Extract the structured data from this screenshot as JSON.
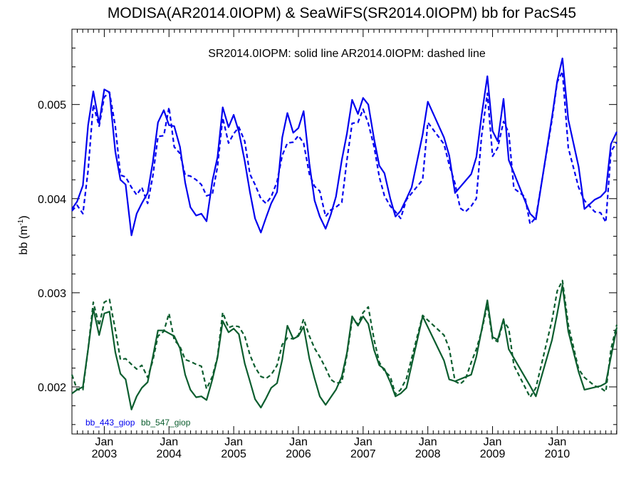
{
  "chart_data": {
    "type": "line",
    "title": "MODISA(AR2014.0IOPM) & SeaWiFS(SR2014.0IOPM)  bb for PacS45",
    "subtitle": "SR2014.0IOPM: solid line   AR2014.0IOPM: dashed line",
    "ylabel": "bb (m",
    "ylabel_sup": "-1",
    "ylabel_close": ")",
    "xlim": [
      2002.5,
      2010.92
    ],
    "ylim": [
      0.0015,
      0.0058
    ],
    "y_ticks": [
      {
        "value": 0.002,
        "label": "0.002"
      },
      {
        "value": 0.003,
        "label": "0.003"
      },
      {
        "value": 0.004,
        "label": "0.004"
      },
      {
        "value": 0.005,
        "label": "0.005"
      }
    ],
    "x_ticks": [
      {
        "value": 2003.0,
        "month": "Jan",
        "year": "2003"
      },
      {
        "value": 2004.0,
        "month": "Jan",
        "year": "2004"
      },
      {
        "value": 2005.0,
        "month": "Jan",
        "year": "2005"
      },
      {
        "value": 2006.0,
        "month": "Jan",
        "year": "2006"
      },
      {
        "value": 2007.0,
        "month": "Jan",
        "year": "2007"
      },
      {
        "value": 2008.0,
        "month": "Jan",
        "year": "2008"
      },
      {
        "value": 2009.0,
        "month": "Jan",
        "year": "2009"
      },
      {
        "value": 2010.0,
        "month": "Jan",
        "year": "2010"
      }
    ],
    "legend": [
      {
        "label": "bb_443_giop",
        "color": "#0000ee"
      },
      {
        "label": "bb_547_giop",
        "color": "#0b5d2e"
      }
    ],
    "series": [
      {
        "name": "bb_443_giop",
        "color": "#0000ee",
        "style": "solid",
        "x": [
          2002.5,
          2002.58,
          2002.67,
          2002.75,
          2002.83,
          2002.92,
          2003.0,
          2003.08,
          2003.17,
          2003.25,
          2003.33,
          2003.42,
          2003.5,
          2003.58,
          2003.67,
          2003.75,
          2003.83,
          2003.92,
          2004.0,
          2004.08,
          2004.17,
          2004.25,
          2004.33,
          2004.42,
          2004.5,
          2004.58,
          2004.67,
          2004.75,
          2004.83,
          2004.92,
          2005.0,
          2005.08,
          2005.17,
          2005.25,
          2005.33,
          2005.42,
          2005.5,
          2005.58,
          2005.67,
          2005.75,
          2005.83,
          2005.92,
          2006.0,
          2006.08,
          2006.17,
          2006.25,
          2006.33,
          2006.42,
          2006.5,
          2006.58,
          2006.67,
          2006.75,
          2006.83,
          2006.92,
          2007.0,
          2007.08,
          2007.17,
          2007.25,
          2007.33,
          2007.42,
          2007.5,
          2007.58,
          2007.67,
          2007.75,
          2007.92,
          2008.0,
          2008.25,
          2008.33,
          2008.42,
          2008.67,
          2008.75,
          2008.83,
          2008.92,
          2009.0,
          2009.08,
          2009.17,
          2009.25,
          2009.58,
          2009.67,
          2009.92,
          2010.0,
          2010.08,
          2010.17,
          2010.33,
          2010.42,
          2010.58,
          2010.67,
          2010.75,
          2010.83,
          2010.92
        ],
        "y": [
          0.00389,
          0.00397,
          0.00414,
          0.00478,
          0.00514,
          0.0048,
          0.00516,
          0.00513,
          0.0045,
          0.0042,
          0.00415,
          0.00361,
          0.00384,
          0.00395,
          0.00406,
          0.00439,
          0.00481,
          0.00494,
          0.00478,
          0.00477,
          0.00455,
          0.00417,
          0.00391,
          0.00382,
          0.00384,
          0.00376,
          0.00419,
          0.00444,
          0.00497,
          0.00476,
          0.00489,
          0.00471,
          0.0044,
          0.00407,
          0.00379,
          0.00364,
          0.0038,
          0.00395,
          0.00407,
          0.00465,
          0.00491,
          0.0047,
          0.00475,
          0.00493,
          0.00437,
          0.00398,
          0.00381,
          0.00368,
          0.00383,
          0.00402,
          0.00441,
          0.00469,
          0.00505,
          0.0049,
          0.00507,
          0.005,
          0.00463,
          0.00435,
          0.00427,
          0.004,
          0.00381,
          0.00387,
          0.004,
          0.00412,
          0.00468,
          0.00503,
          0.00465,
          0.00446,
          0.00406,
          0.00426,
          0.00444,
          0.00488,
          0.0053,
          0.00472,
          0.00461,
          0.00506,
          0.00441,
          0.00384,
          0.00378,
          0.00487,
          0.00525,
          0.00549,
          0.00484,
          0.00434,
          0.00389,
          0.00399,
          0.00402,
          0.00408,
          0.00458,
          0.00471
        ]
      },
      {
        "name": "bb_443_giop",
        "color": "#0000ee",
        "style": "dashed",
        "x": [
          2002.5,
          2002.58,
          2002.67,
          2002.75,
          2002.83,
          2002.92,
          2003.0,
          2003.08,
          2003.17,
          2003.25,
          2003.33,
          2003.42,
          2003.5,
          2003.58,
          2003.67,
          2003.75,
          2003.83,
          2003.92,
          2004.0,
          2004.08,
          2004.17,
          2004.25,
          2004.33,
          2004.42,
          2004.5,
          2004.58,
          2004.67,
          2004.75,
          2004.83,
          2004.92,
          2005.0,
          2005.08,
          2005.17,
          2005.25,
          2005.33,
          2005.42,
          2005.5,
          2005.58,
          2005.67,
          2005.75,
          2005.83,
          2005.92,
          2006.0,
          2006.08,
          2006.17,
          2006.25,
          2006.33,
          2006.42,
          2006.5,
          2006.58,
          2006.67,
          2006.75,
          2006.83,
          2006.92,
          2007.0,
          2007.08,
          2007.17,
          2007.25,
          2007.33,
          2007.42,
          2007.5,
          2007.58,
          2007.67,
          2007.92,
          2008.0,
          2008.25,
          2008.33,
          2008.42,
          2008.5,
          2008.58,
          2008.67,
          2008.75,
          2008.83,
          2008.92,
          2009.0,
          2009.08,
          2009.17,
          2009.25,
          2009.33,
          2009.5,
          2009.58,
          2009.67,
          2009.92,
          2010.0,
          2010.08,
          2010.17,
          2010.33,
          2010.42,
          2010.58,
          2010.67,
          2010.75,
          2010.83,
          2010.92
        ],
        "y": [
          0.00387,
          0.00393,
          0.00384,
          0.0043,
          0.005,
          0.00477,
          0.00508,
          0.00513,
          0.00477,
          0.00425,
          0.00423,
          0.00412,
          0.00404,
          0.00412,
          0.00395,
          0.00424,
          0.00466,
          0.00467,
          0.00497,
          0.00455,
          0.00448,
          0.00425,
          0.00424,
          0.0042,
          0.00415,
          0.00403,
          0.00405,
          0.00434,
          0.00486,
          0.00459,
          0.00469,
          0.00476,
          0.00461,
          0.00426,
          0.00415,
          0.004,
          0.00395,
          0.00402,
          0.00418,
          0.00446,
          0.00459,
          0.0046,
          0.00467,
          0.00459,
          0.00426,
          0.00413,
          0.00408,
          0.00381,
          0.00388,
          0.00391,
          0.00396,
          0.00441,
          0.0048,
          0.00481,
          0.00495,
          0.0048,
          0.00455,
          0.00423,
          0.00403,
          0.00392,
          0.00386,
          0.00379,
          0.00399,
          0.0042,
          0.00481,
          0.00458,
          0.00436,
          0.00416,
          0.0039,
          0.00386,
          0.00392,
          0.004,
          0.00466,
          0.00512,
          0.00445,
          0.00454,
          0.00482,
          0.0047,
          0.00411,
          0.00402,
          0.00373,
          0.0038,
          0.00484,
          0.00524,
          0.00535,
          0.00454,
          0.00412,
          0.00398,
          0.00386,
          0.00385,
          0.00375,
          0.0045,
          0.0046
        ]
      },
      {
        "name": "bb_547_giop",
        "color": "#0b5d2e",
        "style": "solid",
        "x": [
          2002.5,
          2002.58,
          2002.67,
          2002.75,
          2002.83,
          2002.92,
          2003.0,
          2003.08,
          2003.17,
          2003.25,
          2003.33,
          2003.42,
          2003.5,
          2003.58,
          2003.67,
          2003.75,
          2003.83,
          2003.92,
          2004.0,
          2004.08,
          2004.17,
          2004.25,
          2004.33,
          2004.42,
          2004.5,
          2004.58,
          2004.67,
          2004.75,
          2004.83,
          2004.92,
          2005.0,
          2005.08,
          2005.17,
          2005.25,
          2005.33,
          2005.42,
          2005.5,
          2005.58,
          2005.67,
          2005.75,
          2005.83,
          2005.92,
          2006.0,
          2006.08,
          2006.17,
          2006.25,
          2006.33,
          2006.42,
          2006.5,
          2006.58,
          2006.67,
          2006.75,
          2006.83,
          2006.92,
          2007.0,
          2007.08,
          2007.17,
          2007.25,
          2007.33,
          2007.42,
          2007.5,
          2007.58,
          2007.67,
          2007.92,
          2008.25,
          2008.33,
          2008.42,
          2008.67,
          2008.75,
          2008.83,
          2008.92,
          2009.0,
          2009.08,
          2009.17,
          2009.25,
          2009.58,
          2009.67,
          2009.92,
          2010.0,
          2010.08,
          2010.17,
          2010.33,
          2010.42,
          2010.67,
          2010.75,
          2010.83,
          2010.92
        ],
        "y": [
          0.00193,
          0.00197,
          0.002,
          0.0024,
          0.00283,
          0.00255,
          0.00278,
          0.0028,
          0.00237,
          0.00214,
          0.00208,
          0.00176,
          0.0019,
          0.00199,
          0.00205,
          0.00232,
          0.0026,
          0.0026,
          0.00257,
          0.00254,
          0.00241,
          0.00213,
          0.00197,
          0.00189,
          0.0019,
          0.00186,
          0.00208,
          0.00231,
          0.0027,
          0.00258,
          0.00262,
          0.00256,
          0.00225,
          0.00206,
          0.00187,
          0.00178,
          0.00188,
          0.00199,
          0.00204,
          0.00229,
          0.00265,
          0.00251,
          0.00254,
          0.00264,
          0.0023,
          0.00209,
          0.0019,
          0.00181,
          0.00189,
          0.00197,
          0.00211,
          0.00236,
          0.00275,
          0.00265,
          0.00275,
          0.00267,
          0.00239,
          0.00223,
          0.00219,
          0.00205,
          0.0019,
          0.00193,
          0.00199,
          0.00275,
          0.00228,
          0.00208,
          0.00206,
          0.00213,
          0.00232,
          0.0026,
          0.00292,
          0.00253,
          0.0025,
          0.00272,
          0.0024,
          0.00201,
          0.0019,
          0.0025,
          0.00278,
          0.00308,
          0.00259,
          0.00216,
          0.00197,
          0.00201,
          0.00204,
          0.00232,
          0.00263
        ]
      },
      {
        "name": "bb_547_giop",
        "color": "#0b5d2e",
        "style": "dashed",
        "x": [
          2002.5,
          2002.58,
          2002.67,
          2002.75,
          2002.83,
          2002.92,
          2003.0,
          2003.08,
          2003.17,
          2003.25,
          2003.33,
          2003.42,
          2003.5,
          2003.58,
          2003.67,
          2003.75,
          2003.83,
          2003.92,
          2004.0,
          2004.08,
          2004.17,
          2004.25,
          2004.33,
          2004.42,
          2004.5,
          2004.58,
          2004.67,
          2004.75,
          2004.83,
          2004.92,
          2005.0,
          2005.08,
          2005.17,
          2005.25,
          2005.33,
          2005.42,
          2005.5,
          2005.58,
          2005.67,
          2005.75,
          2005.83,
          2005.92,
          2006.0,
          2006.08,
          2006.17,
          2006.25,
          2006.33,
          2006.42,
          2006.5,
          2006.58,
          2006.67,
          2006.75,
          2006.83,
          2006.92,
          2007.0,
          2007.08,
          2007.17,
          2007.25,
          2007.33,
          2007.42,
          2007.5,
          2007.58,
          2007.67,
          2007.92,
          2008.25,
          2008.33,
          2008.42,
          2008.5,
          2008.58,
          2008.67,
          2008.75,
          2008.83,
          2008.92,
          2009.0,
          2009.08,
          2009.17,
          2009.25,
          2009.33,
          2009.5,
          2009.58,
          2009.67,
          2009.92,
          2010.0,
          2010.08,
          2010.17,
          2010.33,
          2010.42,
          2010.58,
          2010.67,
          2010.75,
          2010.83,
          2010.92
        ],
        "y": [
          0.00213,
          0.00197,
          0.00197,
          0.0024,
          0.0029,
          0.00265,
          0.0029,
          0.00293,
          0.00261,
          0.00229,
          0.0023,
          0.00224,
          0.00219,
          0.00223,
          0.0021,
          0.00228,
          0.00254,
          0.00259,
          0.00278,
          0.0025,
          0.00243,
          0.00229,
          0.00227,
          0.00224,
          0.00222,
          0.00198,
          0.00211,
          0.00232,
          0.00279,
          0.00263,
          0.00265,
          0.00264,
          0.00254,
          0.00234,
          0.00221,
          0.00211,
          0.00209,
          0.00213,
          0.00223,
          0.00245,
          0.00252,
          0.00251,
          0.00255,
          0.00272,
          0.00254,
          0.00241,
          0.00232,
          0.0022,
          0.00208,
          0.00204,
          0.00205,
          0.00234,
          0.00271,
          0.00267,
          0.00279,
          0.00285,
          0.0025,
          0.00226,
          0.00217,
          0.00211,
          0.00192,
          0.00197,
          0.00209,
          0.00276,
          0.00255,
          0.00241,
          0.00206,
          0.00203,
          0.00208,
          0.00226,
          0.0024,
          0.00259,
          0.00287,
          0.00251,
          0.00248,
          0.0027,
          0.00262,
          0.00223,
          0.002,
          0.00189,
          0.00199,
          0.00271,
          0.00302,
          0.00313,
          0.00266,
          0.00219,
          0.0021,
          0.00201,
          0.00199,
          0.00195,
          0.0024,
          0.00266
        ]
      }
    ]
  }
}
